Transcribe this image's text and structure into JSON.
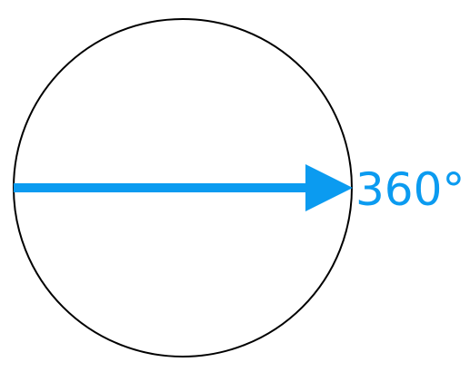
{
  "diagram": {
    "angle_label": "360°",
    "colors": {
      "circle_stroke": "#000000",
      "arrow": "#0b9bf0",
      "label": "#0b9bf0",
      "background": "#ffffff"
    }
  }
}
